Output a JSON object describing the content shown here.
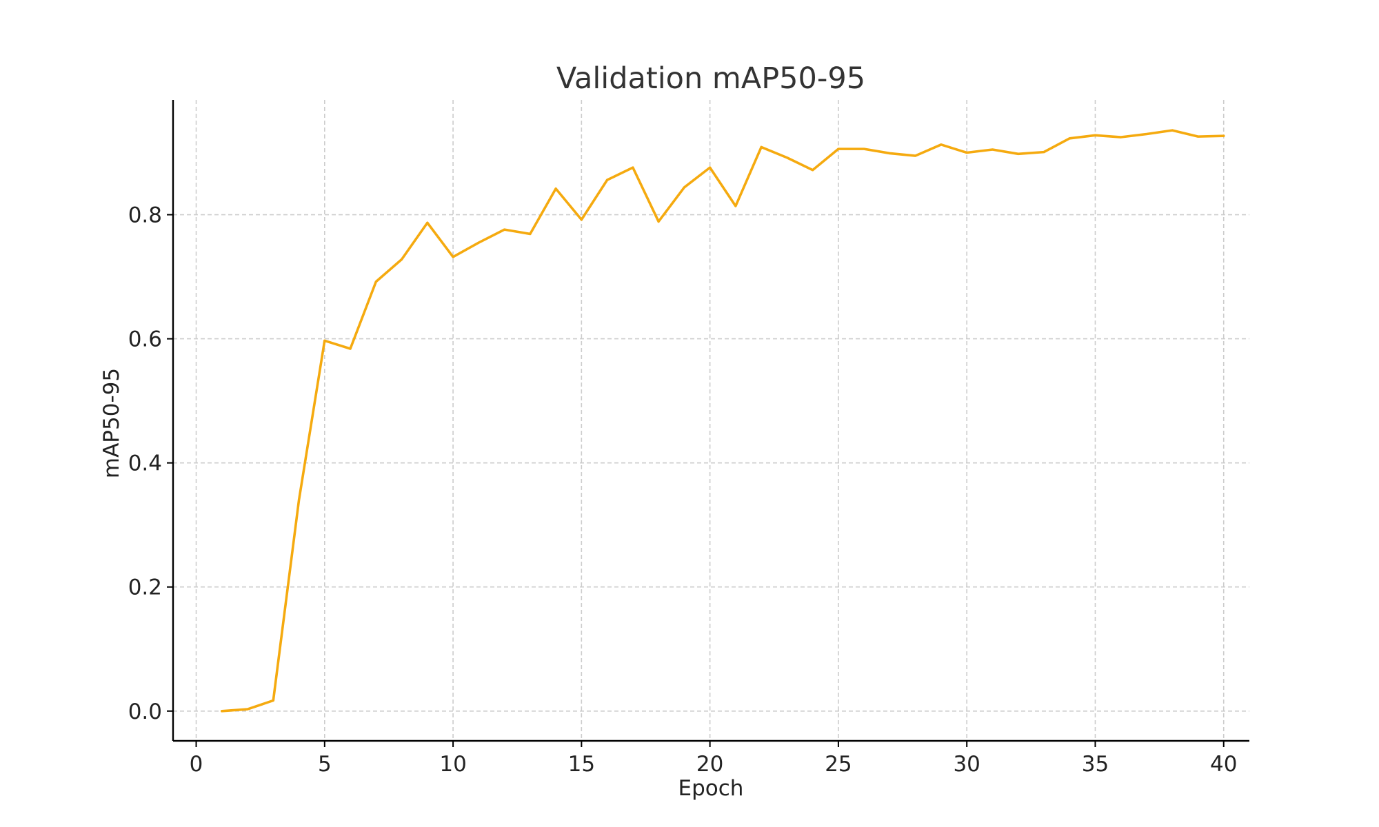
{
  "chart_data": {
    "type": "line",
    "title": "Validation mAP50-95",
    "xlabel": "Epoch",
    "ylabel": "mAP50-95",
    "xlim": [
      -0.9,
      41
    ],
    "ylim": [
      -0.048,
      0.985
    ],
    "x_ticks": [
      0,
      5,
      10,
      15,
      20,
      25,
      30,
      35,
      40
    ],
    "y_ticks": [
      0.0,
      0.2,
      0.4,
      0.6,
      0.8
    ],
    "grid": true,
    "legend": "none",
    "series": [
      {
        "color": "#f5aa0f",
        "x": [
          1,
          2,
          3,
          4,
          5,
          6,
          7,
          8,
          9,
          10,
          11,
          12,
          13,
          14,
          15,
          16,
          17,
          18,
          19,
          20,
          21,
          22,
          23,
          24,
          25,
          26,
          27,
          28,
          29,
          30,
          31,
          32,
          33,
          34,
          35,
          36,
          37,
          38,
          39,
          40
        ],
        "y": [
          0.0,
          0.003,
          0.017,
          0.34,
          0.597,
          0.584,
          0.692,
          0.728,
          0.787,
          0.732,
          0.755,
          0.776,
          0.769,
          0.842,
          0.792,
          0.856,
          0.876,
          0.789,
          0.844,
          0.876,
          0.814,
          0.909,
          0.892,
          0.872,
          0.906,
          0.906,
          0.899,
          0.895,
          0.913,
          0.9,
          0.905,
          0.898,
          0.901,
          0.923,
          0.928,
          0.925,
          0.93,
          0.936,
          0.926,
          0.927
        ]
      }
    ]
  }
}
